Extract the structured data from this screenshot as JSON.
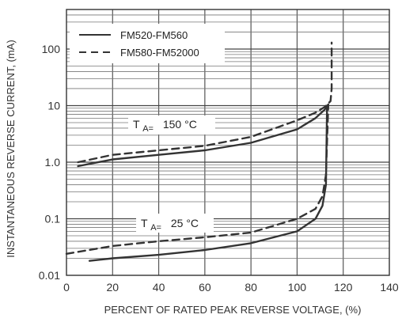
{
  "chart_data": {
    "type": "line",
    "xlabel": "PERCENT OF RATED PEAK REVERSE VOLTAGE, (%)",
    "ylabel": "INSTANTANEOUS REVERSE CURRENT, (mA)",
    "xlim": [
      0,
      140
    ],
    "ylim": [
      0.01,
      500
    ],
    "y_scale": "log",
    "x_ticks": [
      "0",
      "20",
      "40",
      "60",
      "80",
      "100",
      "120",
      "140"
    ],
    "y_ticks": [
      "0.01",
      "0.1",
      "1.0",
      "10",
      "100"
    ],
    "grid": true,
    "legend_position": "top-left",
    "legend": [
      {
        "label": "FM520-FM560",
        "style": "solid"
      },
      {
        "label": "FM580-FM52000",
        "style": "dashed"
      }
    ],
    "annotations": [
      {
        "prefix": "T",
        "sub": "A=",
        "value": "150 °C"
      },
      {
        "prefix": "T",
        "sub": "A=",
        "value": "25 °C"
      }
    ],
    "series": [
      {
        "style": "solid",
        "condition": "150 °C",
        "x": [
          5,
          20,
          40,
          60,
          80,
          100,
          108,
          112,
          113.5
        ],
        "y": [
          0.85,
          1.12,
          1.35,
          1.62,
          2.2,
          3.8,
          6.0,
          8.5,
          10.5
        ]
      },
      {
        "style": "dashed",
        "condition": "150 °C",
        "x": [
          5,
          20,
          40,
          60,
          80,
          100,
          108,
          112,
          114.5,
          115,
          115,
          115
        ],
        "y": [
          1.0,
          1.35,
          1.62,
          1.95,
          2.8,
          5.5,
          7.5,
          9.5,
          12,
          20,
          60,
          130
        ]
      },
      {
        "style": "solid",
        "condition": "25 °C",
        "x": [
          10,
          20,
          40,
          60,
          80,
          100,
          108,
          111,
          112.5,
          113
        ],
        "y": [
          0.018,
          0.02,
          0.023,
          0.028,
          0.037,
          0.06,
          0.1,
          0.17,
          0.4,
          10
        ]
      },
      {
        "style": "dashed",
        "condition": "25 °C",
        "x": [
          0,
          20,
          40,
          60,
          80,
          100,
          108,
          111,
          112.5,
          113.5
        ],
        "y": [
          0.024,
          0.033,
          0.04,
          0.047,
          0.057,
          0.1,
          0.15,
          0.25,
          0.6,
          10
        ]
      }
    ]
  }
}
